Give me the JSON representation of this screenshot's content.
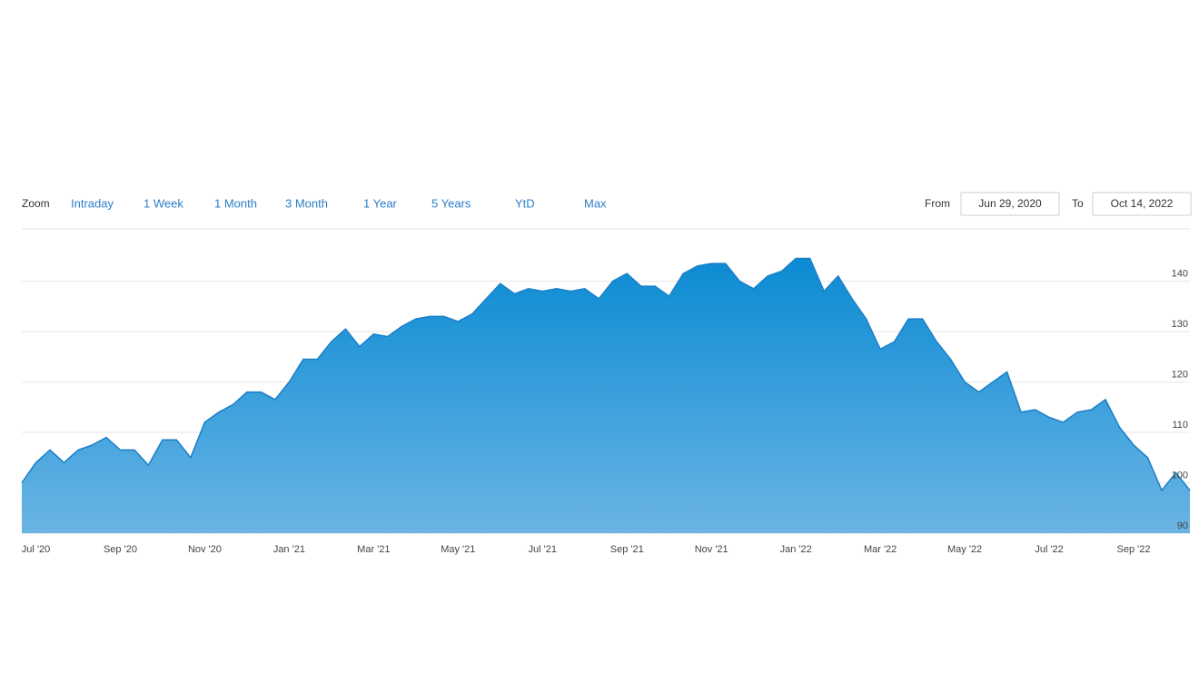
{
  "controls": {
    "zoom_label": "Zoom",
    "zoom_options": [
      "Intraday",
      "1 Week",
      "1 Month",
      "3 Month",
      "1 Year",
      "5 Years",
      "YtD",
      "Max"
    ],
    "from_label": "From",
    "from_date": "Jun 29, 2020",
    "to_label": "To",
    "to_date": "Oct 14, 2022"
  },
  "chart_data": {
    "type": "area",
    "color": "#1a7fc8",
    "categories": [
      null,
      "Jul '20",
      null,
      null,
      null,
      null,
      null,
      "Sep '20",
      null,
      null,
      null,
      null,
      null,
      "Nov '20",
      null,
      null,
      null,
      null,
      null,
      "Jan '21",
      null,
      null,
      null,
      null,
      null,
      "Mar '21",
      null,
      null,
      null,
      null,
      null,
      "May '21",
      null,
      null,
      null,
      null,
      null,
      "Jul '21",
      null,
      null,
      null,
      null,
      null,
      "Sep '21",
      null,
      null,
      null,
      null,
      null,
      "Nov '21",
      null,
      null,
      null,
      null,
      null,
      "Jan '22",
      null,
      null,
      null,
      null,
      null,
      "Mar '22",
      null,
      null,
      null,
      null,
      null,
      "May '22",
      null,
      null,
      null,
      null,
      null,
      "Jul '22",
      null,
      null,
      null,
      null,
      null,
      "Sep '22",
      null,
      null,
      null,
      null
    ],
    "values": [
      100,
      104,
      106.5,
      104,
      106.5,
      107.5,
      109,
      106.5,
      106.5,
      103.5,
      108.5,
      108.5,
      105,
      112,
      114,
      115.5,
      118,
      118,
      116.5,
      120,
      124.5,
      124.5,
      128,
      130.5,
      127,
      129.5,
      129,
      131,
      132.5,
      133,
      133,
      132,
      133.5,
      136.5,
      139.5,
      137.5,
      138.5,
      138,
      138.5,
      138,
      138.5,
      136.5,
      140,
      141.5,
      139,
      139,
      137,
      141.5,
      143,
      143.5,
      143.5,
      140,
      138.5,
      141,
      142,
      144.5,
      144.5,
      138,
      141,
      136.5,
      132.5,
      126.5,
      128,
      132.5,
      132.5,
      128,
      124.5,
      120,
      118,
      120,
      122,
      114,
      114.5,
      113,
      112,
      114,
      114.5,
      116.5,
      111,
      107.5,
      105,
      98.5,
      102,
      98.5
    ],
    "ylim": [
      90,
      150
    ],
    "yticks": [
      90,
      100,
      110,
      120,
      130,
      140
    ],
    "grid": true
  }
}
